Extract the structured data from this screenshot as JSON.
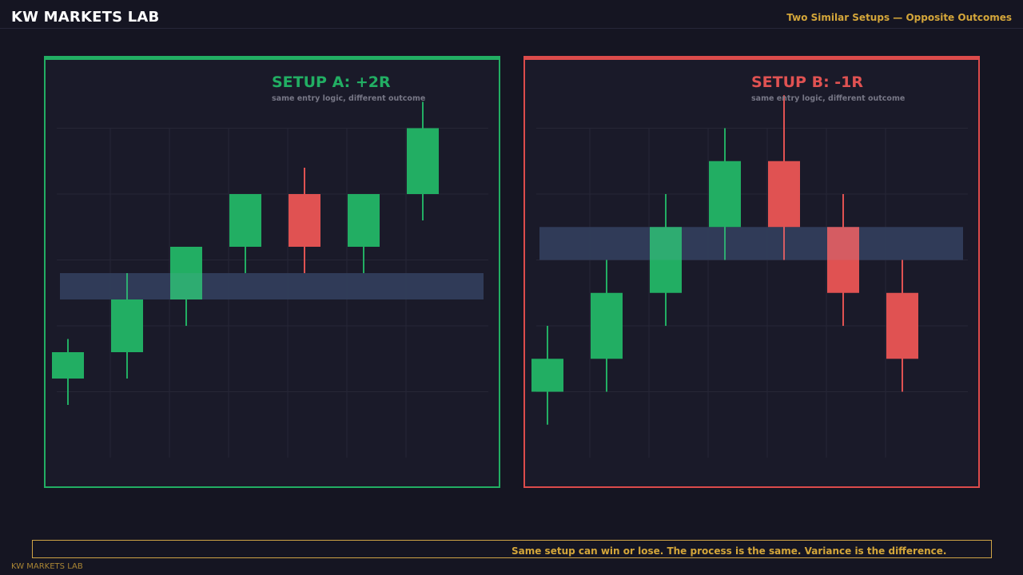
{
  "header": {
    "brand": "KW MARKETS LAB",
    "tagline": "Two Similar Setups — Opposite Outcomes"
  },
  "colors": {
    "background": "#151522",
    "panel": "#1a1a29",
    "bull": "#22ae63",
    "bear": "#e05252",
    "zone": "#252f4a",
    "accent": "#d4a63a",
    "grid": "#262636"
  },
  "chart_data": [
    {
      "type": "candlestick",
      "title": "SETUP A: +2R",
      "subtitle": "same entry logic, different outcome",
      "outcome": "win",
      "grid": true,
      "ylim": [
        0,
        6
      ],
      "zone": [
        2.4,
        2.8
      ],
      "candles": [
        {
          "open": 1.2,
          "high": 1.8,
          "low": 0.8,
          "close": 1.6
        },
        {
          "open": 1.6,
          "high": 2.8,
          "low": 1.2,
          "close": 2.4
        },
        {
          "open": 2.4,
          "high": 3.2,
          "low": 2.0,
          "close": 3.2
        },
        {
          "open": 3.2,
          "high": 4.0,
          "low": 2.8,
          "close": 4.0
        },
        {
          "open": 4.0,
          "high": 4.4,
          "low": 2.8,
          "close": 3.2
        },
        {
          "open": 3.2,
          "high": 4.0,
          "low": 2.8,
          "close": 4.0
        },
        {
          "open": 4.0,
          "high": 5.4,
          "low": 3.6,
          "close": 5.0
        }
      ]
    },
    {
      "type": "candlestick",
      "title": "SETUP B: -1R",
      "subtitle": "same entry logic, different outcome",
      "outcome": "loss",
      "grid": true,
      "ylim": [
        0,
        6
      ],
      "zone": [
        3.0,
        3.5
      ],
      "candles": [
        {
          "open": 1.0,
          "high": 2.0,
          "low": 0.5,
          "close": 1.5
        },
        {
          "open": 1.5,
          "high": 3.0,
          "low": 1.0,
          "close": 2.5
        },
        {
          "open": 2.5,
          "high": 4.0,
          "low": 2.0,
          "close": 3.5
        },
        {
          "open": 3.5,
          "high": 5.0,
          "low": 3.0,
          "close": 4.5
        },
        {
          "open": 4.5,
          "high": 5.5,
          "low": 3.0,
          "close": 3.5
        },
        {
          "open": 3.5,
          "high": 4.0,
          "low": 2.0,
          "close": 2.5
        },
        {
          "open": 2.5,
          "high": 3.0,
          "low": 1.0,
          "close": 1.5
        }
      ]
    }
  ],
  "summary": "Same setup can win or lose. The process is the same. Variance is the difference.",
  "footer": "KW MARKETS LAB"
}
